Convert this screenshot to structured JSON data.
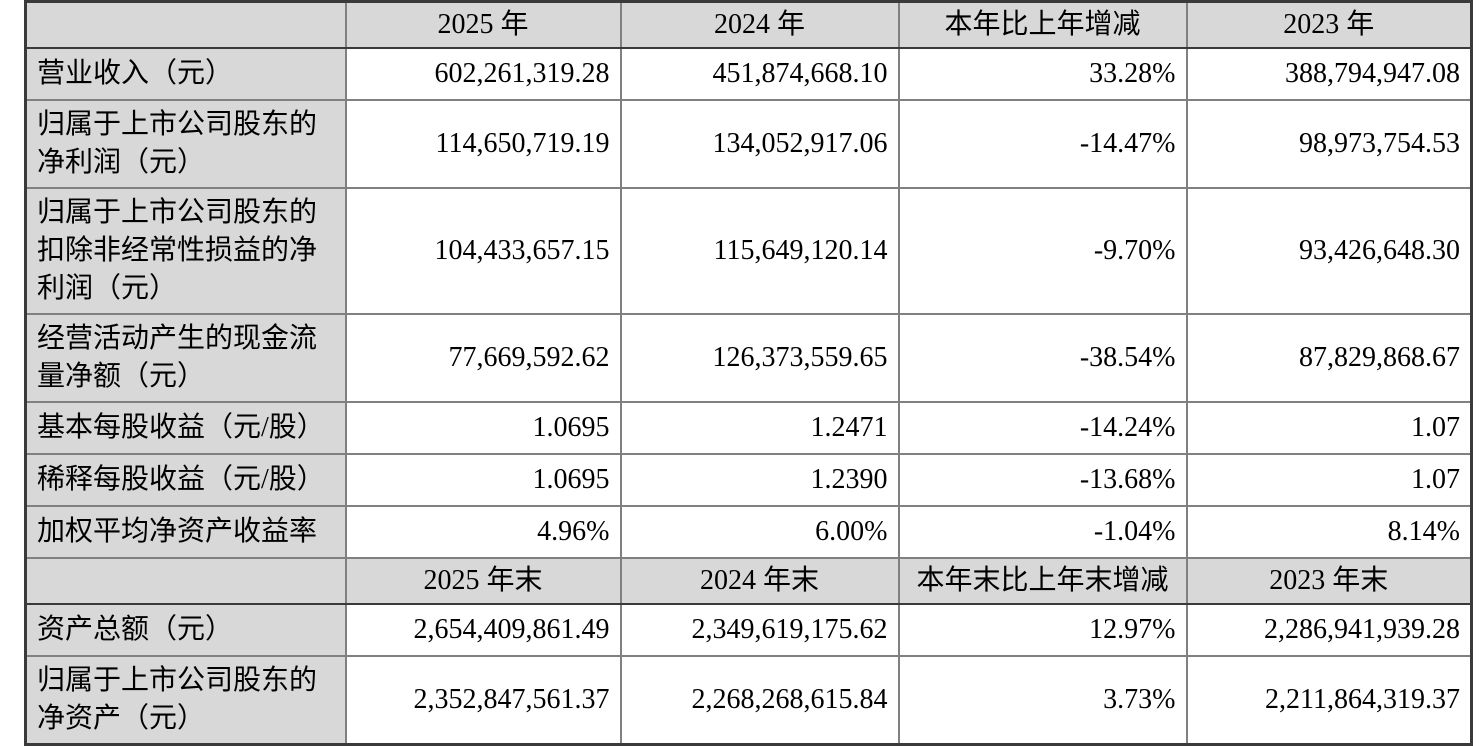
{
  "colors": {
    "page_background": "#ffffff",
    "header_background": "#d8d8d8",
    "label_column_background": "#d8d8d8",
    "grid_line": "#808080",
    "section_line": "#3a3a3a",
    "text": "#000000"
  },
  "table": {
    "sections": [
      {
        "header": {
          "label": "",
          "cols": [
            "2025 年",
            "2024 年",
            "本年比上年增减",
            "2023 年"
          ]
        },
        "rows": [
          {
            "label": "营业收入（元）",
            "values": [
              "602,261,319.28",
              "451,874,668.10",
              "33.28%",
              "388,794,947.08"
            ]
          },
          {
            "label": "归属于上市公司股东的净利润（元）",
            "values": [
              "114,650,719.19",
              "134,052,917.06",
              "-14.47%",
              "98,973,754.53"
            ]
          },
          {
            "label": "归属于上市公司股东的扣除非经常性损益的净利润（元）",
            "values": [
              "104,433,657.15",
              "115,649,120.14",
              "-9.70%",
              "93,426,648.30"
            ]
          },
          {
            "label": "经营活动产生的现金流量净额（元）",
            "values": [
              "77,669,592.62",
              "126,373,559.65",
              "-38.54%",
              "87,829,868.67"
            ]
          },
          {
            "label": "基本每股收益（元/股）",
            "values": [
              "1.0695",
              "1.2471",
              "-14.24%",
              "1.07"
            ]
          },
          {
            "label": "稀释每股收益（元/股）",
            "values": [
              "1.0695",
              "1.2390",
              "-13.68%",
              "1.07"
            ]
          },
          {
            "label": "加权平均净资产收益率",
            "values": [
              "4.96%",
              "6.00%",
              "-1.04%",
              "8.14%"
            ]
          }
        ]
      },
      {
        "header": {
          "label": "",
          "cols": [
            "2025 年末",
            "2024 年末",
            "本年末比上年末增减",
            "2023 年末"
          ]
        },
        "rows": [
          {
            "label": "资产总额（元）",
            "values": [
              "2,654,409,861.49",
              "2,349,619,175.62",
              "12.97%",
              "2,286,941,939.28"
            ]
          },
          {
            "label": "归属于上市公司股东的净资产（元）",
            "values": [
              "2,352,847,561.37",
              "2,268,268,615.84",
              "3.73%",
              "2,211,864,319.37"
            ]
          }
        ]
      }
    ]
  }
}
